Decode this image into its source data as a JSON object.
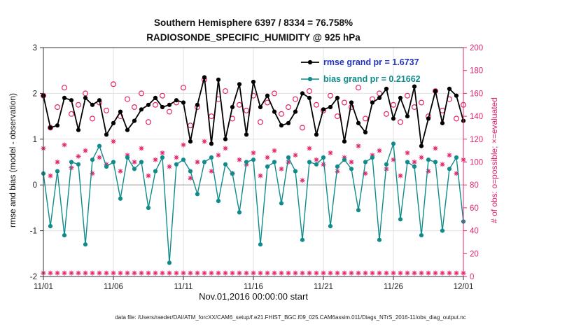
{
  "title": {
    "line1": "Southern Hemisphere 6397 / 8334 = 76.758%",
    "line2": "RADIOSONDE_SPECIFIC_HUMIDITY @ 925 hPa"
  },
  "legend": {
    "rmse_label": "rmse grand pr = 1.6737",
    "bias_label": "bias grand pr = 0.21662"
  },
  "axes": {
    "left_label": "rmse and bias (model - observation)",
    "right_label": "# of obs: o=possible; ×=evaluated",
    "x_label": "Nov.01,2016 00:00:00 start"
  },
  "footer": "data file: /Users/raeder/DAI/ATM_forcXX/CAM6_setup/f.e21.FHIST_BGC.f09_025.CAM6assim.011/Diags_NTrS_2016-11/obs_diag_output.nc",
  "colors": {
    "rmse": "#000000",
    "bias": "#0f8b8b",
    "obs": "#e0266e",
    "legend_rmse_text": "#2233bb",
    "grid": "#e0e0e0",
    "zero_line": "#b5b5b5",
    "axis": "#333333"
  },
  "chart_data": {
    "type": "line",
    "title": "Southern Hemisphere 6397 / 8334 = 76.758% | RADIOSONDE_SPECIFIC_HUMIDITY @ 925 hPa",
    "xlabel": "Nov.01,2016 00:00:00 start",
    "x_tick_labels": [
      "11/01",
      "11/06",
      "11/11",
      "11/16",
      "11/21",
      "11/26",
      "12/01"
    ],
    "x_tick_indices": [
      0,
      10,
      20,
      30,
      40,
      50,
      60
    ],
    "left_axis": {
      "label": "rmse and bias (model - observation)",
      "min": -2,
      "max": 3,
      "ticks": [
        -2,
        -1,
        0,
        1,
        2,
        3
      ]
    },
    "right_axis": {
      "label": "# of obs: o=possible; ×=evaluated",
      "min": 0,
      "max": 200,
      "ticks": [
        0,
        20,
        40,
        60,
        80,
        100,
        120,
        140,
        160,
        180,
        200
      ]
    },
    "grid": true,
    "legend_position": "top-right-inside",
    "series": [
      {
        "name": "possible_obs",
        "marker": "open-circle",
        "color": "#e0266e",
        "axis": "right",
        "line": false,
        "values": [
          158,
          130,
          148,
          165,
          142,
          150,
          160,
          138,
          152,
          145,
          168,
          140,
          155,
          148,
          160,
          135,
          150,
          158,
          144,
          152,
          165,
          132,
          148,
          172,
          140,
          155,
          162,
          138,
          150,
          145,
          158,
          135,
          152,
          160,
          142,
          148,
          155,
          130,
          162,
          150,
          145,
          158,
          140,
          152,
          148,
          165,
          138,
          155,
          160,
          142,
          150,
          135,
          158,
          148,
          152,
          140,
          162,
          145,
          155,
          138,
          150
        ]
      },
      {
        "name": "evaluated_obs",
        "marker": "asterisk",
        "color": "#e0266e",
        "axis": "right",
        "line": false,
        "values": [
          112,
          88,
          100,
          115,
          95,
          105,
          110,
          90,
          104,
          98,
          118,
          92,
          106,
          100,
          112,
          88,
          102,
          108,
          96,
          104,
          115,
          86,
          100,
          118,
          92,
          106,
          112,
          90,
          102,
          98,
          108,
          88,
          104,
          110,
          94,
          100,
          106,
          84,
          112,
          102,
          98,
          108,
          92,
          104,
          100,
          114,
          90,
          106,
          110,
          94,
          102,
          88,
          108,
          100,
          104,
          92,
          112,
          98,
          106,
          90,
          102
        ]
      },
      {
        "name": "bottom_row_obs",
        "marker": "asterisk",
        "color": "#e0266e",
        "axis": "right",
        "line": false,
        "values": [
          3,
          3,
          3,
          3,
          3,
          3,
          3,
          3,
          3,
          3,
          3,
          3,
          3,
          3,
          3,
          3,
          3,
          3,
          3,
          3,
          3,
          3,
          3,
          3,
          3,
          3,
          3,
          3,
          3,
          3,
          3,
          3,
          3,
          3,
          3,
          3,
          3,
          3,
          3,
          3,
          3,
          3,
          3,
          3,
          3,
          3,
          3,
          3,
          3,
          3,
          3,
          3,
          3,
          3,
          3,
          3,
          3,
          3,
          3,
          3,
          3
        ]
      },
      {
        "name": "bias",
        "marker": "filled-circle",
        "color": "#0f8b8b",
        "axis": "left",
        "line": true,
        "line_width": 1.4,
        "values": [
          0.25,
          -0.9,
          0.3,
          -1.1,
          0.5,
          0.45,
          -1.3,
          0.55,
          0.85,
          0.4,
          0.5,
          -0.3,
          0.6,
          0.35,
          0.5,
          -0.5,
          0.3,
          0.6,
          -1.7,
          0.45,
          0.55,
          0.3,
          -0.2,
          0.5,
          0.6,
          -0.35,
          0.45,
          0.25,
          -0.6,
          0.5,
          0.55,
          -1.3,
          0.4,
          0.5,
          -0.4,
          0.6,
          0.3,
          -1.2,
          0.5,
          0.45,
          0.6,
          -0.9,
          0.4,
          0.55,
          0.35,
          -0.55,
          0.5,
          0.6,
          -1.2,
          0.45,
          0.9,
          -0.75,
          0.5,
          0.4,
          -1.1,
          0.55,
          0.5,
          -1.0,
          0.35,
          0.6,
          -0.8
        ]
      },
      {
        "name": "rmse",
        "marker": "filled-circle",
        "color": "#000000",
        "axis": "left",
        "line": true,
        "line_width": 1.8,
        "values": [
          1.95,
          1.25,
          1.3,
          1.9,
          1.85,
          1.2,
          1.9,
          1.75,
          1.85,
          1.1,
          1.35,
          1.6,
          1.2,
          1.4,
          1.65,
          1.75,
          1.9,
          1.7,
          1.75,
          1.85,
          1.8,
          0.95,
          1.75,
          2.35,
          0.9,
          2.3,
          1.0,
          1.7,
          2.2,
          1.1,
          2.25,
          1.7,
          1.95,
          1.6,
          1.3,
          1.35,
          1.6,
          2.0,
          1.9,
          1.1,
          1.65,
          1.7,
          1.9,
          0.95,
          1.8,
          1.35,
          1.15,
          1.8,
          1.9,
          2.1,
          1.45,
          1.9,
          1.5,
          2.15,
          0.85,
          1.45,
          2.05,
          1.35,
          2.1,
          1.95,
          1.4
        ]
      },
      {
        "name": "rmse_grand_pr",
        "value": 1.6737
      },
      {
        "name": "bias_grand_pr",
        "value": 0.21662
      }
    ]
  }
}
